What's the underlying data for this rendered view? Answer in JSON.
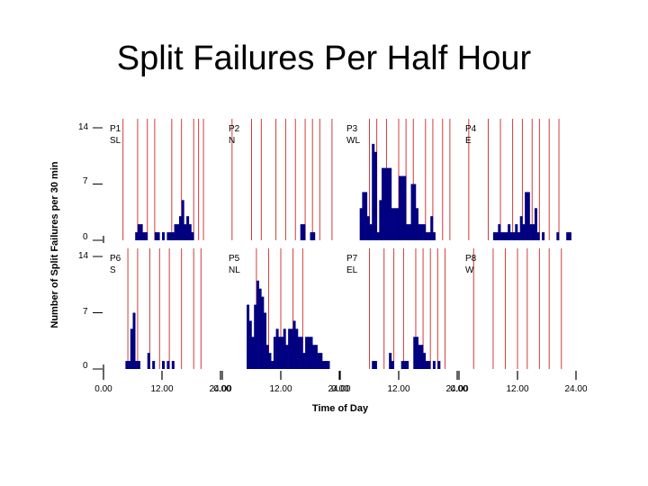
{
  "slide": {
    "title": "Split Failures Per Half Hour"
  },
  "chart_data": {
    "type": "bar",
    "xlabel": "Time of Day",
    "ylabel": "Number of Split Failures per 30 min",
    "x_unit": "hour",
    "xlim": [
      0,
      24
    ],
    "ylim": [
      0,
      14
    ],
    "y_ticks": [
      0,
      7,
      14
    ],
    "x_ticks": [
      "0.00",
      "12.00",
      "24.00"
    ],
    "bar_color": "#000080",
    "line_color": "#d23c3c",
    "grid": false,
    "panels": [
      {
        "id": "P1",
        "direction": "SL",
        "row": 0,
        "col": 0,
        "bars": [
          [
            6.5,
            1
          ],
          [
            7,
            2
          ],
          [
            7.5,
            2
          ],
          [
            8,
            1
          ],
          [
            8.5,
            1
          ],
          [
            10.5,
            1
          ],
          [
            11,
            1
          ],
          [
            12,
            1
          ],
          [
            13,
            1
          ],
          [
            13.5,
            1
          ],
          [
            14,
            1
          ],
          [
            14.5,
            2
          ],
          [
            15,
            2
          ],
          [
            15.5,
            3
          ],
          [
            16,
            5
          ],
          [
            16.5,
            2
          ],
          [
            17,
            3
          ],
          [
            17.5,
            2
          ],
          [
            18,
            1
          ]
        ],
        "lines": [
          4,
          7,
          9,
          10.5,
          14,
          16,
          18.5,
          19.5,
          20.5
        ]
      },
      {
        "id": "P2",
        "direction": "N",
        "row": 0,
        "col": 1,
        "bars": [
          [
            16,
            2
          ],
          [
            16.5,
            2
          ],
          [
            18,
            1
          ],
          [
            18.5,
            1
          ]
        ],
        "lines": [
          2,
          6,
          8,
          11,
          13,
          15,
          17,
          18.5,
          20,
          22.5
        ]
      },
      {
        "id": "P3",
        "direction": "WL",
        "row": 0,
        "col": 2,
        "bars": [
          [
            4,
            4
          ],
          [
            4.5,
            6
          ],
          [
            5,
            6
          ],
          [
            5.5,
            3
          ],
          [
            6,
            2
          ],
          [
            6.5,
            12
          ],
          [
            7,
            11
          ],
          [
            7.5,
            1
          ],
          [
            8,
            5
          ],
          [
            8.5,
            9
          ],
          [
            9,
            9
          ],
          [
            9.5,
            9
          ],
          [
            10,
            9
          ],
          [
            10.5,
            4
          ],
          [
            11,
            4
          ],
          [
            11.5,
            4
          ],
          [
            12,
            8
          ],
          [
            12.5,
            8
          ],
          [
            13,
            8
          ],
          [
            13.5,
            2
          ],
          [
            14,
            2
          ],
          [
            14.5,
            7
          ],
          [
            15,
            7
          ],
          [
            15.5,
            4
          ],
          [
            16,
            2
          ],
          [
            16.5,
            2
          ],
          [
            17,
            2
          ],
          [
            17.5,
            1
          ],
          [
            18,
            1
          ],
          [
            18.5,
            3
          ],
          [
            19,
            1
          ]
        ],
        "lines": [
          6,
          7.5,
          9.5,
          12,
          13.5,
          15,
          17.5,
          19,
          21,
          22.5
        ]
      },
      {
        "id": "P4",
        "direction": "E",
        "row": 0,
        "col": 3,
        "bars": [
          [
            7,
            1
          ],
          [
            7.5,
            1
          ],
          [
            8,
            2
          ],
          [
            8.5,
            1
          ],
          [
            9,
            1
          ],
          [
            9.5,
            1
          ],
          [
            10,
            2
          ],
          [
            10.5,
            1
          ],
          [
            11,
            1
          ],
          [
            11.5,
            2
          ],
          [
            12,
            1
          ],
          [
            12.5,
            3
          ],
          [
            13,
            2
          ],
          [
            13.5,
            6
          ],
          [
            14,
            6
          ],
          [
            14.5,
            2
          ],
          [
            15,
            2
          ],
          [
            15.5,
            4
          ],
          [
            16,
            1
          ],
          [
            17,
            1
          ],
          [
            20,
            1
          ],
          [
            22,
            1
          ],
          [
            22.5,
            1
          ]
        ],
        "lines": [
          2,
          6,
          8.5,
          11,
          13,
          15,
          16.5,
          18.5,
          20.5
        ]
      },
      {
        "id": "P6",
        "direction": "S",
        "row": 1,
        "col": 0,
        "bars": [
          [
            4.5,
            1
          ],
          [
            5,
            1
          ],
          [
            5.5,
            5
          ],
          [
            6,
            7
          ],
          [
            6.5,
            1
          ],
          [
            7,
            1
          ],
          [
            9,
            2
          ],
          [
            10,
            1
          ],
          [
            12,
            1
          ],
          [
            13,
            1
          ],
          [
            14,
            1
          ]
        ],
        "lines": [
          5,
          7,
          9.5,
          11.5,
          13.5,
          16,
          18.5,
          20
        ]
      },
      {
        "id": "P5",
        "direction": "NL",
        "row": 1,
        "col": 1,
        "bars": [
          [
            5,
            8
          ],
          [
            5.5,
            6
          ],
          [
            6,
            4
          ],
          [
            6.5,
            8
          ],
          [
            7,
            11
          ],
          [
            7.5,
            10
          ],
          [
            8,
            9
          ],
          [
            8.5,
            7
          ],
          [
            9,
            3
          ],
          [
            9.5,
            2
          ],
          [
            10,
            1
          ],
          [
            10.5,
            4
          ],
          [
            11,
            5
          ],
          [
            11.5,
            4
          ],
          [
            12,
            4
          ],
          [
            12.5,
            5
          ],
          [
            13,
            3
          ],
          [
            13.5,
            5
          ],
          [
            14,
            5
          ],
          [
            14.5,
            6
          ],
          [
            15,
            5
          ],
          [
            15.5,
            4
          ],
          [
            16,
            4
          ],
          [
            16.5,
            2
          ],
          [
            17,
            4
          ],
          [
            17.5,
            4
          ],
          [
            18,
            4
          ],
          [
            18.5,
            3
          ],
          [
            19,
            3
          ],
          [
            19.5,
            2
          ],
          [
            20,
            2
          ],
          [
            20.5,
            1
          ],
          [
            21,
            1
          ],
          [
            21.5,
            1
          ]
        ],
        "lines": [
          7,
          9.5,
          12,
          14.5,
          16.5
        ]
      },
      {
        "id": "P7",
        "direction": "EL",
        "row": 1,
        "col": 2,
        "bars": [
          [
            6.5,
            1
          ],
          [
            7,
            1
          ],
          [
            10,
            2
          ],
          [
            10.5,
            1
          ],
          [
            12.5,
            1
          ],
          [
            13,
            1
          ],
          [
            13.5,
            1
          ],
          [
            15,
            4
          ],
          [
            15.5,
            4
          ],
          [
            16,
            3
          ],
          [
            16.5,
            3
          ],
          [
            17,
            2
          ],
          [
            17.5,
            1
          ],
          [
            18,
            1
          ],
          [
            19,
            1
          ],
          [
            20,
            1
          ]
        ],
        "lines": [
          6,
          9,
          11,
          13,
          15.5,
          17,
          18.5,
          20,
          21.5
        ]
      },
      {
        "id": "P8",
        "direction": "W",
        "row": 1,
        "col": 3,
        "bars": [],
        "lines": [
          3,
          7,
          9.5,
          12,
          14,
          16.5,
          18.5,
          21
        ]
      }
    ]
  }
}
